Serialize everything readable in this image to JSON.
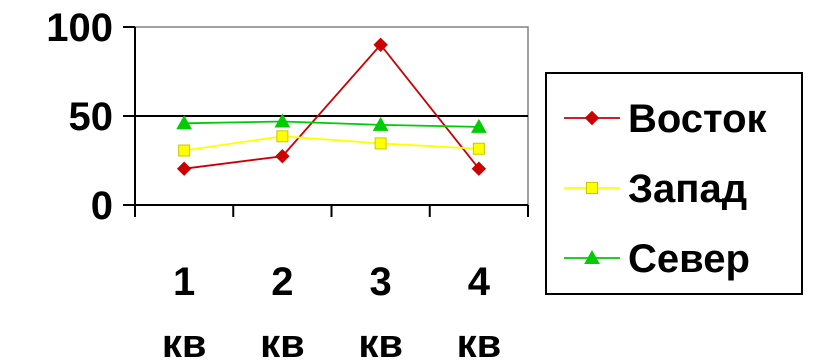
{
  "chart_data": {
    "type": "line",
    "categories": [
      "1 кв",
      "2 кв",
      "3 кв",
      "4 кв"
    ],
    "category_lines": [
      [
        "1",
        "кв"
      ],
      [
        "2",
        "кв"
      ],
      [
        "3",
        "кв"
      ],
      [
        "4",
        "кв"
      ]
    ],
    "ylim": [
      0,
      100
    ],
    "y_ticks": [
      0,
      50,
      100
    ],
    "grid": {
      "horizontal": true,
      "major_step": 50
    },
    "legend": {
      "position": "right"
    },
    "series": [
      {
        "name": "Восток",
        "color": "#CC0000",
        "marker": "diamond",
        "values": [
          20.4,
          27.4,
          90,
          20.4
        ]
      },
      {
        "name": "Запад",
        "color": "#FFFF00",
        "marker": "square",
        "values": [
          30.6,
          38.6,
          34.6,
          31.6
        ]
      },
      {
        "name": "Север",
        "color": "#00CC00",
        "marker": "triangle",
        "values": [
          45.9,
          46.9,
          45,
          43.9
        ]
      }
    ]
  }
}
